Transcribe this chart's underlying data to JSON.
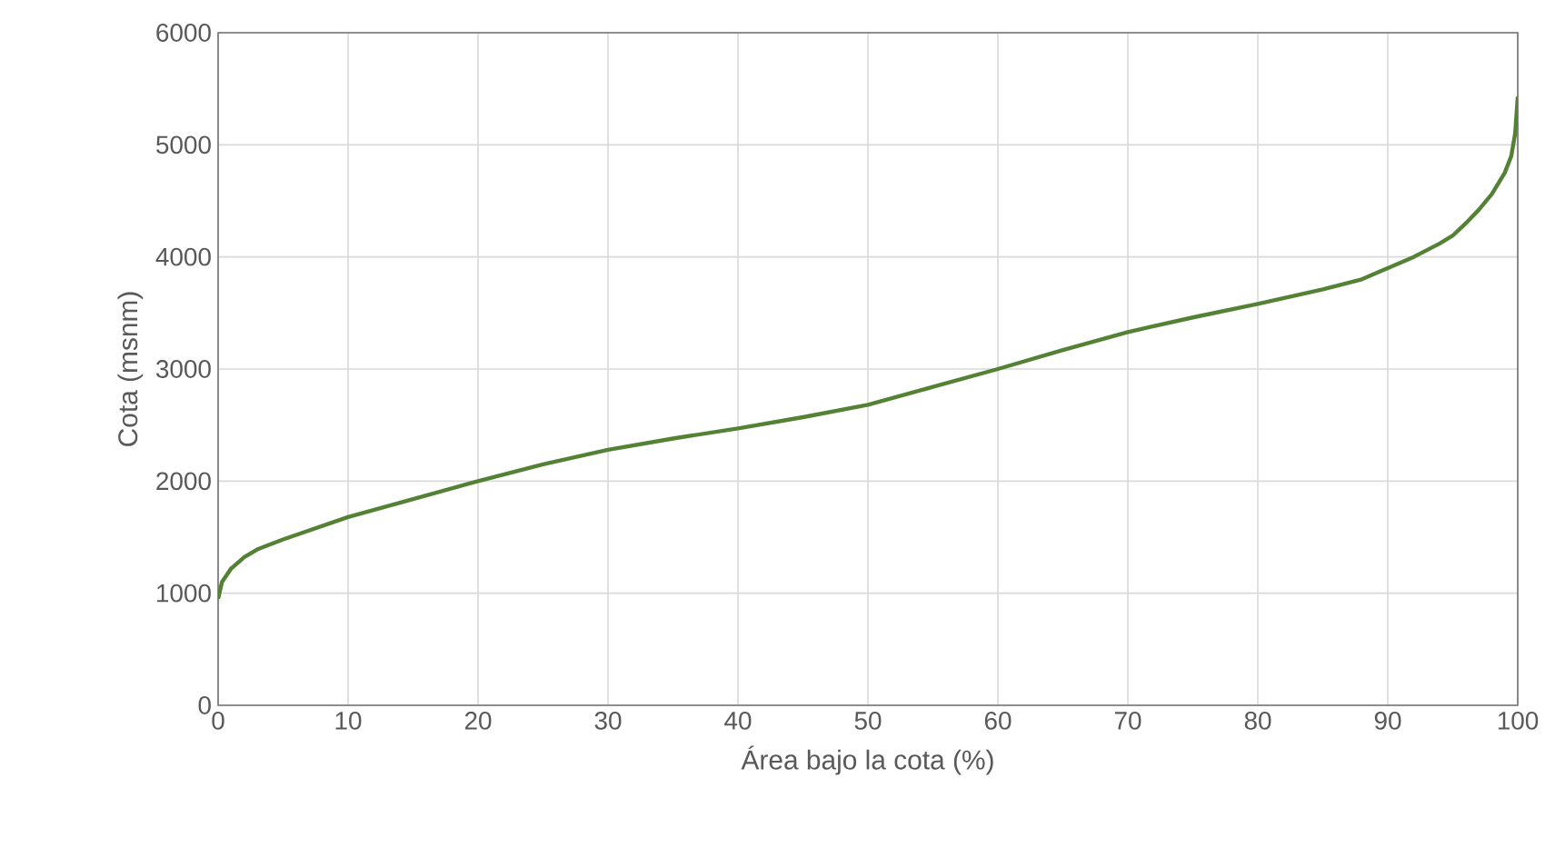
{
  "chart_data": {
    "type": "line",
    "xlabel": "Área bajo la cota (%)",
    "ylabel": "Cota  (msnm)",
    "x": [
      0,
      0.3,
      1,
      2,
      3,
      5,
      10,
      15,
      20,
      25,
      30,
      35,
      40,
      45,
      50,
      55,
      60,
      65,
      70,
      75,
      80,
      85,
      88,
      90,
      92,
      94,
      95,
      96,
      97,
      98,
      99,
      99.5,
      99.8,
      100
    ],
    "values": [
      950,
      1100,
      1220,
      1320,
      1390,
      1480,
      1680,
      1840,
      2000,
      2150,
      2280,
      2380,
      2470,
      2570,
      2680,
      2840,
      3000,
      3170,
      3330,
      3460,
      3580,
      3710,
      3800,
      3900,
      4000,
      4120,
      4190,
      4300,
      4420,
      4560,
      4750,
      4900,
      5100,
      5430
    ],
    "color": "#548235",
    "xlim": [
      0,
      100
    ],
    "ylim": [
      0,
      6000
    ],
    "xticks": [
      0,
      10,
      20,
      30,
      40,
      50,
      60,
      70,
      80,
      90,
      100
    ],
    "yticks": [
      0,
      1000,
      2000,
      3000,
      4000,
      5000,
      6000
    ],
    "grid": true
  }
}
